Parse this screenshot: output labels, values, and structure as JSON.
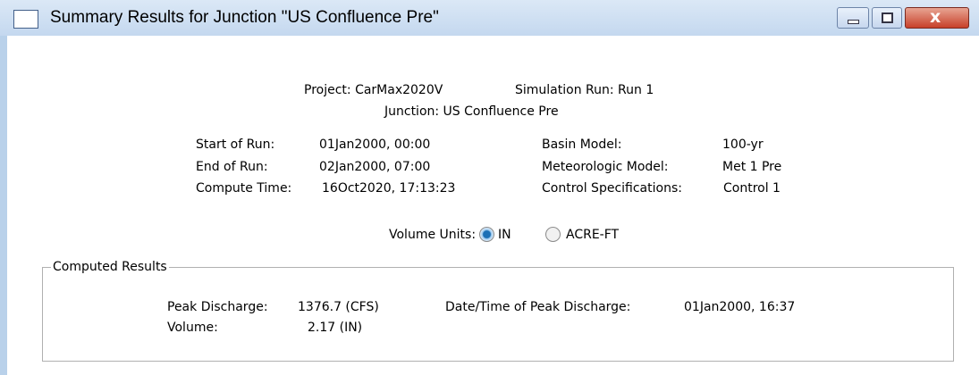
{
  "window": {
    "title": "Summary Results for Junction \"US Confluence Pre\""
  },
  "header": {
    "project": "Project: CarMax2020V",
    "simulation_run": "Simulation Run: Run 1",
    "junction": "Junction: US Confluence Pre"
  },
  "run_info": {
    "left": [
      {
        "label": "Start of Run:",
        "value": "01Jan2000, 00:00"
      },
      {
        "label": "End of Run:",
        "value": "02Jan2000, 07:00"
      },
      {
        "label": "Compute Time:",
        "value": "16Oct2020, 17:13:23"
      }
    ],
    "right": [
      {
        "label": "Basin Model:",
        "value": "100-yr"
      },
      {
        "label": "Meteorologic Model:",
        "value": "Met 1 Pre"
      },
      {
        "label": "Control Specifications:",
        "value": "Control 1"
      }
    ]
  },
  "volume_units": {
    "label": "Volume Units:",
    "options": [
      "IN",
      "ACRE-FT"
    ]
  },
  "computed_results": {
    "title": "Computed Results",
    "peak_discharge": {
      "label": "Peak Discharge:",
      "value": "1376.7 (CFS)"
    },
    "volume": {
      "label": "Volume:",
      "value": "2.17 (IN)"
    },
    "peak_time": {
      "label": "Date/Time of Peak Discharge:",
      "value": "01Jan2000, 16:37"
    }
  }
}
